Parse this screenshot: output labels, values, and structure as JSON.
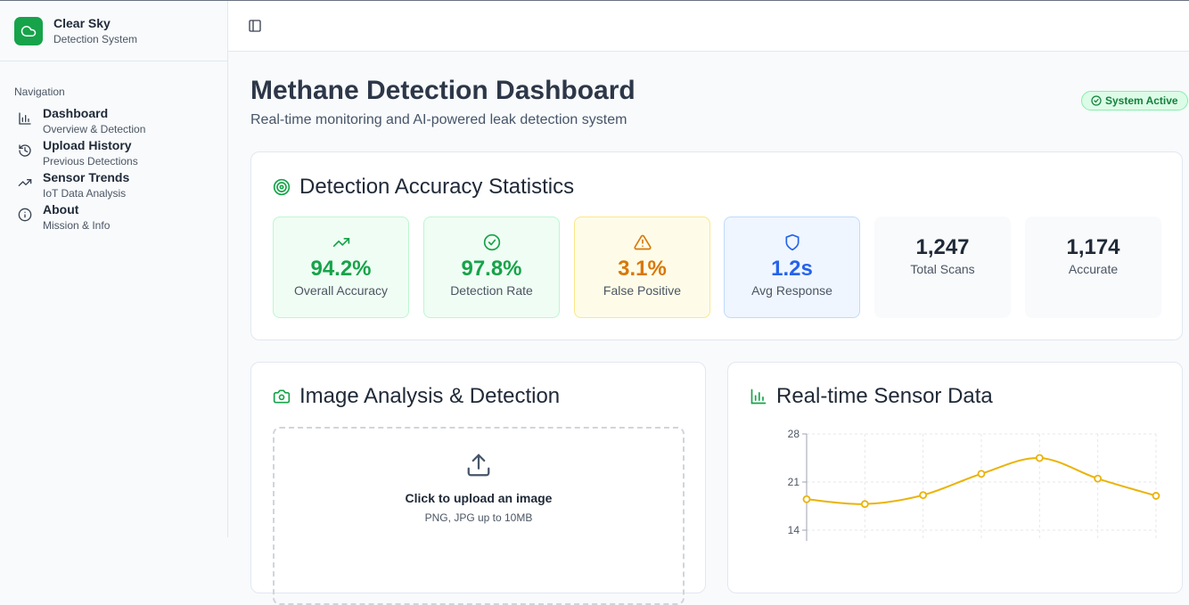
{
  "brand": {
    "name": "Clear Sky",
    "subtitle": "Detection System"
  },
  "nav": {
    "label": "Navigation",
    "items": [
      {
        "title": "Dashboard",
        "desc": "Overview & Detection",
        "icon": "bar-chart-icon"
      },
      {
        "title": "Upload History",
        "desc": "Previous Detections",
        "icon": "history-icon"
      },
      {
        "title": "Sensor Trends",
        "desc": "IoT Data Analysis",
        "icon": "trending-up-icon"
      },
      {
        "title": "About",
        "desc": "Mission & Info",
        "icon": "info-icon"
      }
    ]
  },
  "header": {
    "title": "Methane Detection Dashboard",
    "subtitle": "Real-time monitoring and AI-powered leak detection system",
    "status": "System Active"
  },
  "stats": {
    "title": "Detection Accuracy Statistics",
    "items": [
      {
        "value": "94.2%",
        "label": "Overall Accuracy",
        "icon": "trending-up-icon",
        "color": "#16a34a"
      },
      {
        "value": "97.8%",
        "label": "Detection Rate",
        "icon": "check-circle-icon",
        "color": "#16a34a"
      },
      {
        "value": "3.1%",
        "label": "False Positive",
        "icon": "warning-icon",
        "color": "#d97706"
      },
      {
        "value": "1.2s",
        "label": "Avg Response",
        "icon": "shield-icon",
        "color": "#2563eb"
      },
      {
        "value": "1,247",
        "label": "Total Scans"
      },
      {
        "value": "1,174",
        "label": "Accurate"
      }
    ]
  },
  "upload": {
    "title": "Image Analysis & Detection",
    "prompt": "Click to upload an image",
    "hint": "PNG, JPG up to 10MB"
  },
  "sensor": {
    "title": "Real-time Sensor Data"
  },
  "chart_data": {
    "type": "line",
    "title": "Real-time Sensor Data",
    "y_ticks": [
      28,
      21,
      14
    ],
    "series": [
      {
        "values": [
          18.5,
          17.8,
          19.1,
          22.2,
          24.5,
          21.5,
          19.0
        ],
        "color": "#eab308"
      }
    ],
    "grid": true
  }
}
